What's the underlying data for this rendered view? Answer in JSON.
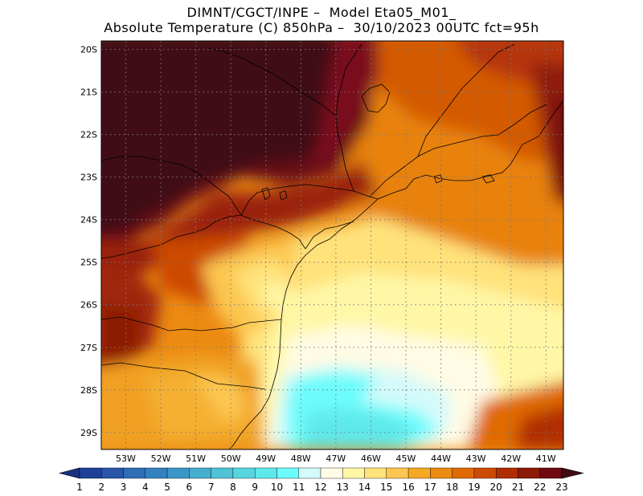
{
  "title": {
    "line1": "DIMNT/CGCT/INPE –  Model Eta05_M01_",
    "line2": "Absolute Temperature (C) 850hPa –  30/10/2023 00UTC fct=95h"
  },
  "map": {
    "lat_labels": [
      "20S",
      "21S",
      "22S",
      "23S",
      "24S",
      "25S",
      "26S",
      "27S",
      "28S",
      "29S"
    ],
    "lon_labels": [
      "53W",
      "52W",
      "51W",
      "50W",
      "49W",
      "48W",
      "47W",
      "46W",
      "45W",
      "44W",
      "43W",
      "42W",
      "41W"
    ],
    "lon_range": [
      -53.7,
      -40.5
    ],
    "lat_range": [
      -29.4,
      -19.8
    ],
    "grid": true
  },
  "colorbar": {
    "labels": [
      "1",
      "2",
      "3",
      "4",
      "5",
      "6",
      "7",
      "8",
      "9",
      "10",
      "11",
      "12",
      "13",
      "14",
      "15",
      "16",
      "17",
      "18",
      "19",
      "20",
      "21",
      "22",
      "23"
    ],
    "colors": [
      "#1f3f99",
      "#2a56a8",
      "#2f6db5",
      "#3282c0",
      "#3a97c9",
      "#45add0",
      "#4fc2d6",
      "#55d6de",
      "#5ee8ea",
      "#6dfcfc",
      "#d4fafa",
      "#fffbe4",
      "#fff7a6",
      "#ffe27a",
      "#fcc650",
      "#f5a823",
      "#ec8a12",
      "#e06a06",
      "#cc4a04",
      "#b02d02",
      "#8c1a06",
      "#6e0a10",
      "#520c18"
    ],
    "arrow_left": "#173080",
    "arrow_right": "#400c12"
  }
}
